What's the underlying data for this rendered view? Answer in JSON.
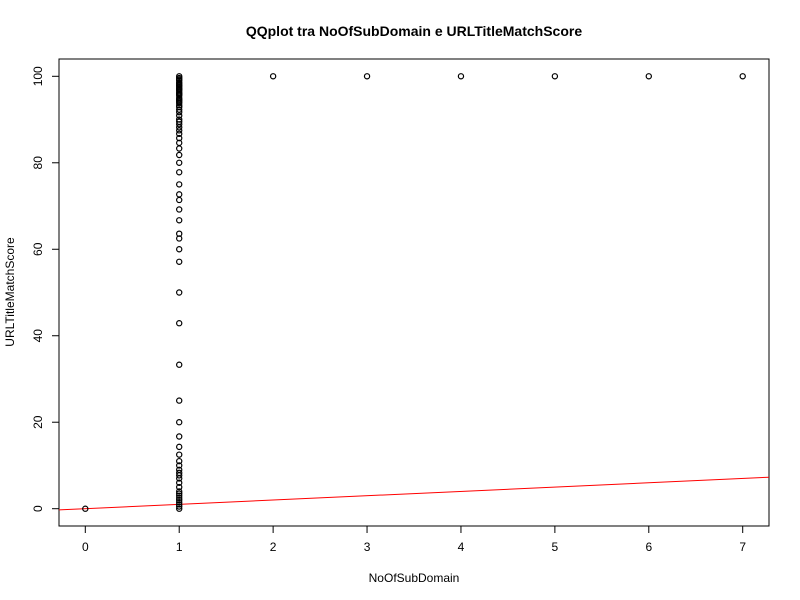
{
  "chart_data": {
    "type": "scatter",
    "title": "QQplot tra NoOfSubDomain e URLTitleMatchScore",
    "xlabel": "NoOfSubDomain",
    "ylabel": "URLTitleMatchScore",
    "xlim": [
      -0.28,
      7.28
    ],
    "ylim": [
      -4,
      104
    ],
    "xticks": [
      0,
      1,
      2,
      3,
      4,
      5,
      6,
      7
    ],
    "yticks": [
      0,
      20,
      40,
      60,
      80,
      100
    ],
    "grid": false,
    "legend": "none",
    "series": [
      {
        "marker": "open-circle",
        "color": "#000000",
        "points": [
          [
            0,
            0
          ],
          [
            1,
            0
          ],
          [
            1,
            0.5
          ],
          [
            1,
            1
          ],
          [
            1,
            1.5
          ],
          [
            1,
            2
          ],
          [
            1,
            2.5
          ],
          [
            1,
            3
          ],
          [
            1,
            3.5
          ],
          [
            1,
            4
          ],
          [
            1,
            5
          ],
          [
            1,
            6
          ],
          [
            1,
            7
          ],
          [
            1,
            7.7
          ],
          [
            1,
            8.3
          ],
          [
            1,
            9
          ],
          [
            1,
            10
          ],
          [
            1,
            11
          ],
          [
            1,
            12.5
          ],
          [
            1,
            14.3
          ],
          [
            1,
            16.7
          ],
          [
            1,
            20
          ],
          [
            1,
            25
          ],
          [
            1,
            33.3
          ],
          [
            1,
            42.9
          ],
          [
            1,
            50
          ],
          [
            1,
            57.1
          ],
          [
            1,
            60
          ],
          [
            1,
            62.5
          ],
          [
            1,
            63.6
          ],
          [
            1,
            66.7
          ],
          [
            1,
            69.2
          ],
          [
            1,
            71.4
          ],
          [
            1,
            72.7
          ],
          [
            1,
            75
          ],
          [
            1,
            77.8
          ],
          [
            1,
            80
          ],
          [
            1,
            81.8
          ],
          [
            1,
            83.3
          ],
          [
            1,
            84.6
          ],
          [
            1,
            85.7
          ],
          [
            1,
            86.7
          ],
          [
            1,
            87.5
          ],
          [
            1,
            88.2
          ],
          [
            1,
            88.9
          ],
          [
            1,
            89.5
          ],
          [
            1,
            90
          ],
          [
            1,
            90.9
          ],
          [
            1,
            91.7
          ],
          [
            1,
            92.3
          ],
          [
            1,
            92.9
          ],
          [
            1,
            93.3
          ],
          [
            1,
            93.8
          ],
          [
            1,
            94.1
          ],
          [
            1,
            94.4
          ],
          [
            1,
            94.7
          ],
          [
            1,
            95
          ],
          [
            1,
            95.5
          ],
          [
            1,
            95.8
          ],
          [
            1,
            96
          ],
          [
            1,
            96.3
          ],
          [
            1,
            96.7
          ],
          [
            1,
            97
          ],
          [
            1,
            97.2
          ],
          [
            1,
            97.5
          ],
          [
            1,
            97.8
          ],
          [
            1,
            98
          ],
          [
            1,
            98.3
          ],
          [
            1,
            98.6
          ],
          [
            1,
            99
          ],
          [
            1,
            99.3
          ],
          [
            1,
            99.6
          ],
          [
            1,
            100
          ],
          [
            2,
            100
          ],
          [
            3,
            100
          ],
          [
            4,
            100
          ],
          [
            5,
            100
          ],
          [
            6,
            100
          ],
          [
            7,
            100
          ]
        ]
      }
    ],
    "reference_line": {
      "color": "#ff0000",
      "intercept": 0,
      "slope": 1
    }
  }
}
